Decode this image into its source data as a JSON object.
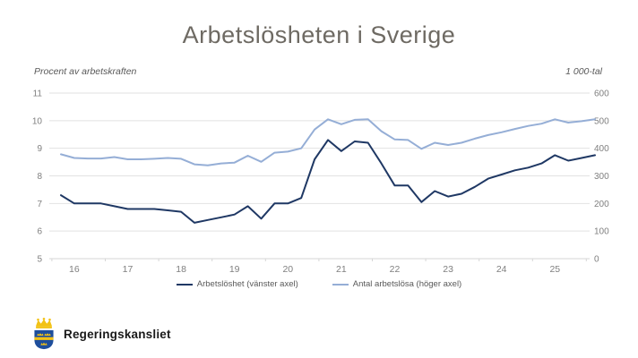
{
  "title": "Arbetslösheten i Sverige",
  "chart_data": {
    "type": "line",
    "title": "Arbetslösheten i Sverige",
    "left_axis": {
      "label": "Procent av arbetskraften",
      "ticks": [
        5,
        6,
        7,
        8,
        9,
        10,
        11
      ],
      "range": [
        5,
        11
      ]
    },
    "right_axis": {
      "label": "1 000-tal",
      "ticks": [
        0,
        100,
        200,
        300,
        400,
        500,
        600
      ],
      "range": [
        0,
        600
      ]
    },
    "x_axis": {
      "year_labels": [
        "16",
        "17",
        "18",
        "19",
        "20",
        "21",
        "22",
        "23",
        "24",
        "25"
      ],
      "points_per_year": 4,
      "first_q1_index": 1
    },
    "grid": "horizontal",
    "legend_position": "bottom-center",
    "series": [
      {
        "name": "Arbetslöshet (vänster axel)",
        "axis": "left",
        "unit": "percent",
        "color": "#1f3864",
        "values": [
          7.3,
          7.0,
          7.0,
          7.0,
          6.9,
          6.8,
          6.8,
          6.8,
          6.75,
          6.7,
          6.3,
          6.4,
          6.5,
          6.6,
          6.9,
          6.45,
          7.0,
          7.0,
          7.2,
          8.6,
          9.3,
          8.9,
          9.25,
          9.2,
          8.45,
          7.65,
          7.65,
          7.05,
          7.45,
          7.25,
          7.35,
          7.6,
          7.9,
          8.05,
          8.2,
          8.3,
          8.45,
          8.75,
          8.55,
          8.65,
          8.75
        ]
      },
      {
        "name": "Antal arbetslösa (höger axel)",
        "axis": "right",
        "unit": "thousands",
        "color": "#95aed6",
        "values": [
          378,
          365,
          363,
          363,
          368,
          360,
          360,
          362,
          365,
          362,
          342,
          338,
          345,
          348,
          373,
          351,
          384,
          388,
          400,
          468,
          505,
          487,
          503,
          505,
          462,
          432,
          430,
          398,
          420,
          412,
          420,
          435,
          448,
          458,
          470,
          481,
          489,
          505,
          493,
          498,
          505
        ]
      }
    ]
  },
  "footer": {
    "logo_text": "Regeringskansliet"
  },
  "icons": {
    "logo_crest": "swedish-coat-of-arms"
  },
  "colors": {
    "background": "#ffffff",
    "title_text": "#6e6a63",
    "axis_text": "#7f7f7f",
    "caption_text": "#595959",
    "gridline": "#e2e2e2",
    "axis_line": "#d6d6d6",
    "dark_line": "#1f3864",
    "light_line": "#95aed6",
    "crest_gold": "#f2c216",
    "crest_blue": "#1e4e9c"
  }
}
